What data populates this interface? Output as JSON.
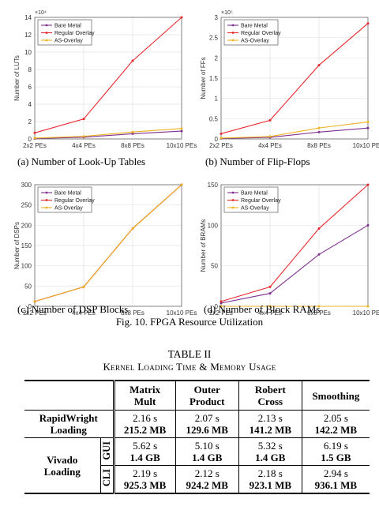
{
  "figure": {
    "caption": "Fig. 10.   FPGA Resource Utilization",
    "legend_colors": {
      "Bare Metal": "#7e2f8e",
      "Regular Overlay": "#e8282f",
      "AS-Overlay": "#edb120"
    },
    "charts": [
      {
        "id": "luts",
        "caption": "(a)  Number of Look-Up Tables",
        "ylabel": "Number of LUTs",
        "multiplier": "×10⁴",
        "chart_data": {
          "type": "line",
          "categories": [
            "2x2 PEs",
            "4x4 PEs",
            "8x8 PEs",
            "10x10 PEs"
          ],
          "ylim": [
            0,
            14
          ],
          "yticks": [
            "0",
            "2",
            "4",
            "6",
            "8",
            "10",
            "12",
            "14"
          ],
          "ytick_values": [
            0,
            2,
            4,
            6,
            8,
            10,
            12,
            14
          ],
          "legend": "top-left",
          "grid": true,
          "series": [
            {
              "name": "Bare Metal",
              "values": [
                0.05,
                0.2,
                0.6,
                0.9
              ]
            },
            {
              "name": "Regular Overlay",
              "values": [
                0.7,
                2.3,
                9.0,
                14.0
              ]
            },
            {
              "name": "AS-Overlay",
              "values": [
                0.1,
                0.3,
                0.8,
                1.2
              ]
            }
          ]
        }
      },
      {
        "id": "ffs",
        "caption": "(b)  Number of Flip-Flops",
        "ylabel": "Number of FFs",
        "multiplier": "×10⁵",
        "chart_data": {
          "type": "line",
          "categories": [
            "2x2 PEs",
            "4x4 PEs",
            "8x8 PEs",
            "10x10 PEs"
          ],
          "ylim": [
            0,
            3
          ],
          "yticks": [
            "0",
            "0.5",
            "1",
            "1.5",
            "2",
            "2.5",
            "3"
          ],
          "ytick_values": [
            0,
            0.5,
            1,
            1.5,
            2,
            2.5,
            3
          ],
          "legend": "top-left",
          "grid": true,
          "series": [
            {
              "name": "Bare Metal",
              "values": [
                0.01,
                0.04,
                0.17,
                0.27
              ]
            },
            {
              "name": "Regular Overlay",
              "values": [
                0.13,
                0.46,
                1.82,
                2.85
              ]
            },
            {
              "name": "AS-Overlay",
              "values": [
                0.02,
                0.06,
                0.27,
                0.42
              ]
            }
          ]
        }
      },
      {
        "id": "dsps",
        "caption": "(c)  Number of DSP Blocks",
        "ylabel": "Number of DSPs",
        "multiplier": "",
        "chart_data": {
          "type": "line",
          "categories": [
            "2x2 PEs",
            "4x4 PEs",
            "8x8 PEs",
            "10x10 PEs"
          ],
          "ylim": [
            0,
            300
          ],
          "yticks": [
            "0",
            "50",
            "100",
            "150",
            "200",
            "250",
            "300"
          ],
          "ytick_values": [
            0,
            50,
            100,
            150,
            200,
            250,
            300
          ],
          "legend": "top-left",
          "grid": true,
          "series": [
            {
              "name": "Bare Metal",
              "values": [
                12,
                48,
                192,
                300
              ]
            },
            {
              "name": "Regular Overlay",
              "values": [
                12,
                48,
                192,
                300
              ]
            },
            {
              "name": "AS-Overlay",
              "values": [
                12,
                48,
                192,
                300
              ]
            }
          ]
        }
      },
      {
        "id": "brams",
        "caption": "(d)  Number of Block RAMs",
        "ylabel": "Number of BRAMs",
        "multiplier": "",
        "chart_data": {
          "type": "line",
          "categories": [
            "2x2 PEs",
            "4x4 PEs",
            "8x8 PEs",
            "10x10 PEs"
          ],
          "ylim": [
            0,
            150
          ],
          "yticks": [
            "0",
            "50",
            "100",
            "150"
          ],
          "ytick_values": [
            0,
            50,
            100,
            150
          ],
          "legend": "top-left",
          "grid": true,
          "series": [
            {
              "name": "Bare Metal",
              "values": [
                4,
                16,
                64,
                100
              ]
            },
            {
              "name": "Regular Overlay",
              "values": [
                6,
                24,
                96,
                150
              ]
            },
            {
              "name": "AS-Overlay",
              "values": [
                0,
                0,
                0,
                0
              ]
            }
          ]
        }
      }
    ]
  },
  "table": {
    "title": "TABLE II",
    "subtitle": "Kernel Loading Time & Memory Usage",
    "columns": [
      {
        "l1": "Matrix",
        "l2": "Mult"
      },
      {
        "l1": "Outer",
        "l2": "Product"
      },
      {
        "l1": "Robert",
        "l2": "Cross"
      },
      {
        "l1": "Smoothing",
        "l2": ""
      }
    ],
    "rapidwright": {
      "l1": "RapidWright",
      "l2": "Loading",
      "time": [
        "2.16 s",
        "2.07 s",
        "2.13 s",
        "2.05 s"
      ],
      "mem": [
        "215.2 MB",
        "129.6 MB",
        "141.2 MB",
        "142.2 MB"
      ]
    },
    "vivado": {
      "l1": "Vivado",
      "l2": "Loading",
      "gui": {
        "label": "GUI",
        "time": [
          "5.62 s",
          "5.10 s",
          "5.32 s",
          "6.19 s"
        ],
        "mem": [
          "1.4 GB",
          "1.4 GB",
          "1.4 GB",
          "1.5 GB"
        ]
      },
      "cli": {
        "label": "CLI",
        "time": [
          "2.19 s",
          "2.12 s",
          "2.18 s",
          "2.94 s"
        ],
        "mem": [
          "925.3 MB",
          "924.2 MB",
          "923.1 MB",
          "936.1 MB"
        ]
      }
    }
  }
}
